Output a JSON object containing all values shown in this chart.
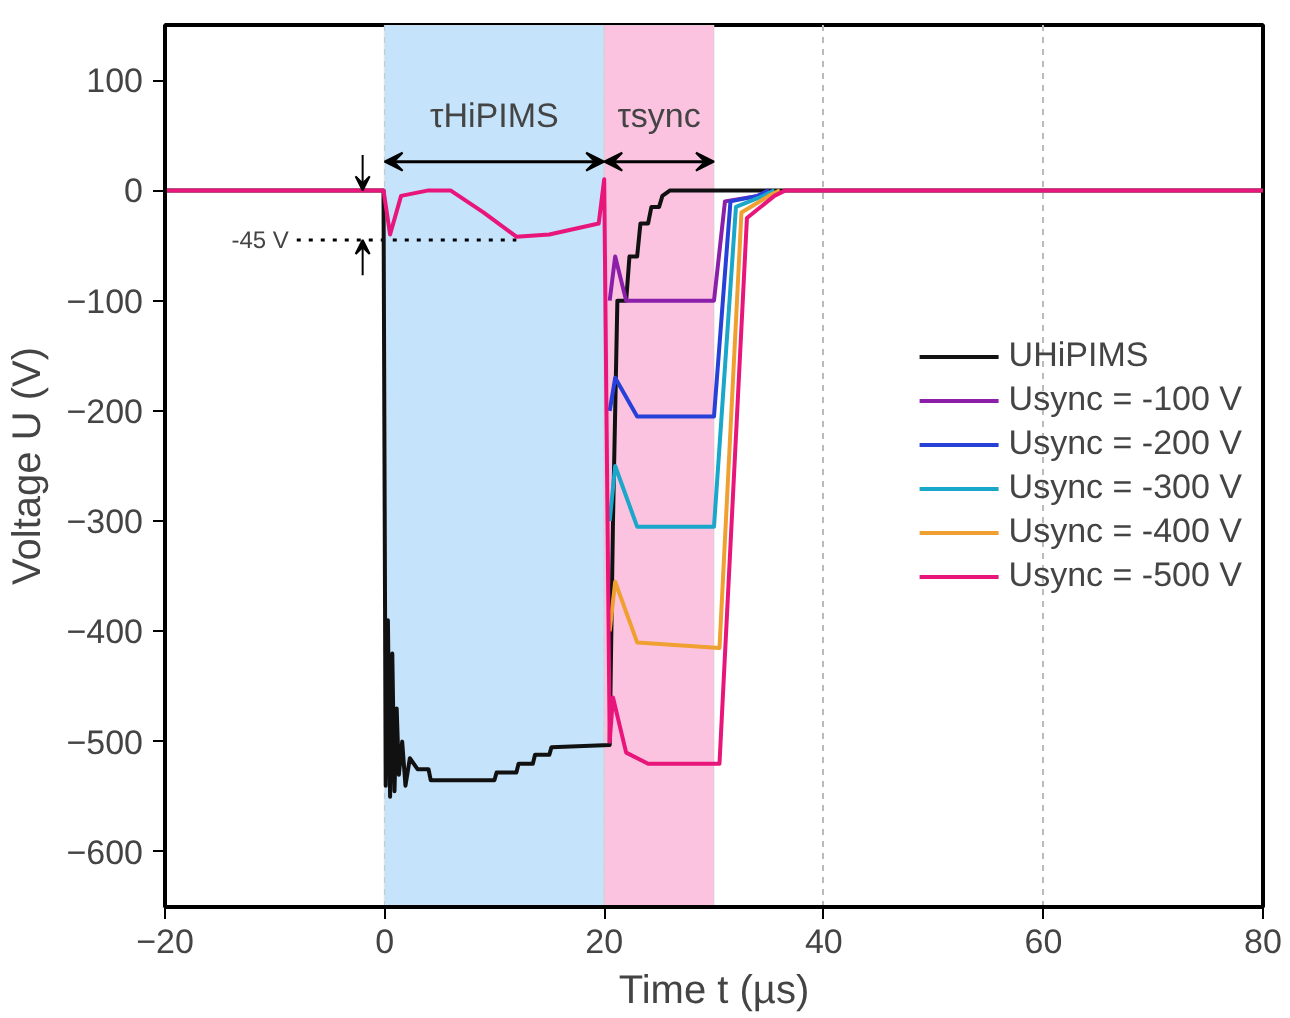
{
  "chart_data": {
    "type": "line",
    "xlabel": "Time t (µs)",
    "ylabel": "Voltage U (V)",
    "xlim": [
      -20,
      80
    ],
    "ylim": [
      -650,
      150
    ],
    "xticks": [
      -20,
      0,
      20,
      40,
      60,
      80
    ],
    "yticks": [
      -600,
      -500,
      -400,
      -300,
      -200,
      -100,
      0,
      100
    ],
    "grid": "x",
    "legend": "right",
    "line_style": "solid",
    "marker": "none",
    "bands": [
      {
        "axis": "x",
        "from": 0,
        "to": 20,
        "label": "τHiPIMS",
        "color": "#c5e3fa"
      },
      {
        "axis": "x",
        "from": 20,
        "to": 30,
        "label": "τsync",
        "color": "#fbc3e0"
      }
    ],
    "ref_lines": [
      {
        "axis": "y",
        "value": -45,
        "label": "-45 V",
        "color": "#000000",
        "line_style": "dotted"
      }
    ],
    "series": [
      {
        "name": "UHiPIMS",
        "color": "#111111",
        "x": [
          -20,
          -0.1,
          0.1,
          0.3,
          0.5,
          0.7,
          0.9,
          1.1,
          1.3,
          1.6,
          1.9,
          2.3,
          3,
          4,
          4.2,
          10,
          10.2,
          12,
          12.2,
          13.5,
          13.7,
          15,
          15.2,
          20.5,
          20.8,
          21.2,
          22,
          22.3,
          23,
          23.3,
          24,
          24.3,
          25,
          25.3,
          26,
          80
        ],
        "values": [
          0,
          0,
          -540,
          -390,
          -550,
          -420,
          -545,
          -470,
          -530,
          -500,
          -540,
          -515,
          -525,
          -525,
          -535,
          -535,
          -528,
          -528,
          -520,
          -520,
          -512,
          -512,
          -505,
          -503,
          -300,
          -100,
          -100,
          -60,
          -60,
          -30,
          -30,
          -15,
          -15,
          -5,
          0,
          0
        ]
      },
      {
        "name": "Usync = -100 V",
        "color": "#8b1fa9",
        "x": [
          20.5,
          21,
          22,
          30,
          31,
          34,
          35
        ],
        "values": [
          -100,
          -60,
          -100,
          -100,
          -10,
          -5,
          0
        ]
      },
      {
        "name": "Usync = -200 V",
        "color": "#2740d8",
        "x": [
          20.5,
          21,
          23,
          30,
          31.5,
          34,
          35
        ],
        "values": [
          -200,
          -170,
          -205,
          -205,
          -10,
          -5,
          0
        ]
      },
      {
        "name": "Usync = -300 V",
        "color": "#1aa7c9",
        "x": [
          20.5,
          21,
          23,
          30,
          32,
          34.5,
          35.5
        ],
        "values": [
          -300,
          -250,
          -305,
          -305,
          -15,
          -5,
          0
        ]
      },
      {
        "name": "Usync = -400 V",
        "color": "#f0a030",
        "x": [
          20.5,
          21,
          23,
          30.5,
          32.5,
          35,
          36
        ],
        "values": [
          -400,
          -355,
          -410,
          -415,
          -20,
          -5,
          0
        ]
      },
      {
        "name": "Usync = -500 V",
        "color": "#e8157a",
        "x": [
          -20,
          -0.1,
          0.5,
          1.5,
          4,
          6,
          9,
          12,
          15,
          19.5,
          20,
          20.5,
          20.8,
          22,
          24,
          30.5,
          33,
          35.5,
          36.5,
          80
        ],
        "values": [
          0,
          0,
          -40,
          -5,
          0,
          0,
          -20,
          -42,
          -40,
          -30,
          10,
          -500,
          -460,
          -510,
          -520,
          -520,
          -25,
          -5,
          0,
          0
        ]
      }
    ]
  }
}
